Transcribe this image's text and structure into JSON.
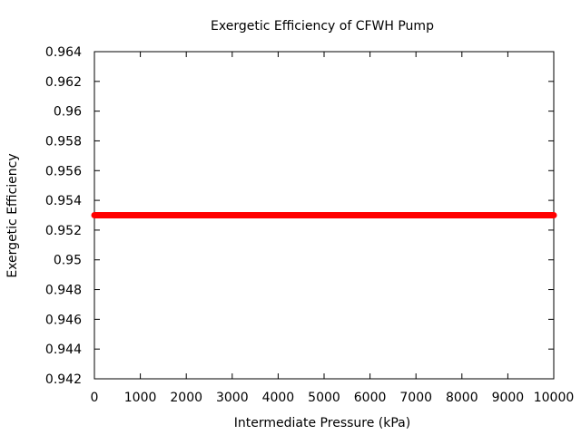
{
  "chart_data": {
    "type": "line",
    "title": "Exergetic Efficiency of CFWH Pump",
    "xlabel": "Intermediate Pressure (kPa)",
    "ylabel": "Exergetic Efficiency",
    "xlim": [
      0,
      10000
    ],
    "ylim": [
      0.942,
      0.964
    ],
    "x_ticks": [
      "0",
      "1000",
      "2000",
      "3000",
      "4000",
      "5000",
      "6000",
      "7000",
      "8000",
      "9000",
      "10000"
    ],
    "y_ticks": [
      "0.942",
      "0.944",
      "0.946",
      "0.948",
      "0.95",
      "0.952",
      "0.954",
      "0.956",
      "0.958",
      "0.96",
      "0.962",
      "0.964"
    ],
    "grid": false,
    "series": [
      {
        "color": "#ff0000",
        "x": [
          0,
          1000,
          2000,
          3000,
          4000,
          5000,
          6000,
          7000,
          8000,
          9000,
          10000
        ],
        "y": [
          0.953,
          0.953,
          0.953,
          0.953,
          0.953,
          0.953,
          0.953,
          0.953,
          0.953,
          0.953,
          0.953
        ]
      }
    ]
  }
}
